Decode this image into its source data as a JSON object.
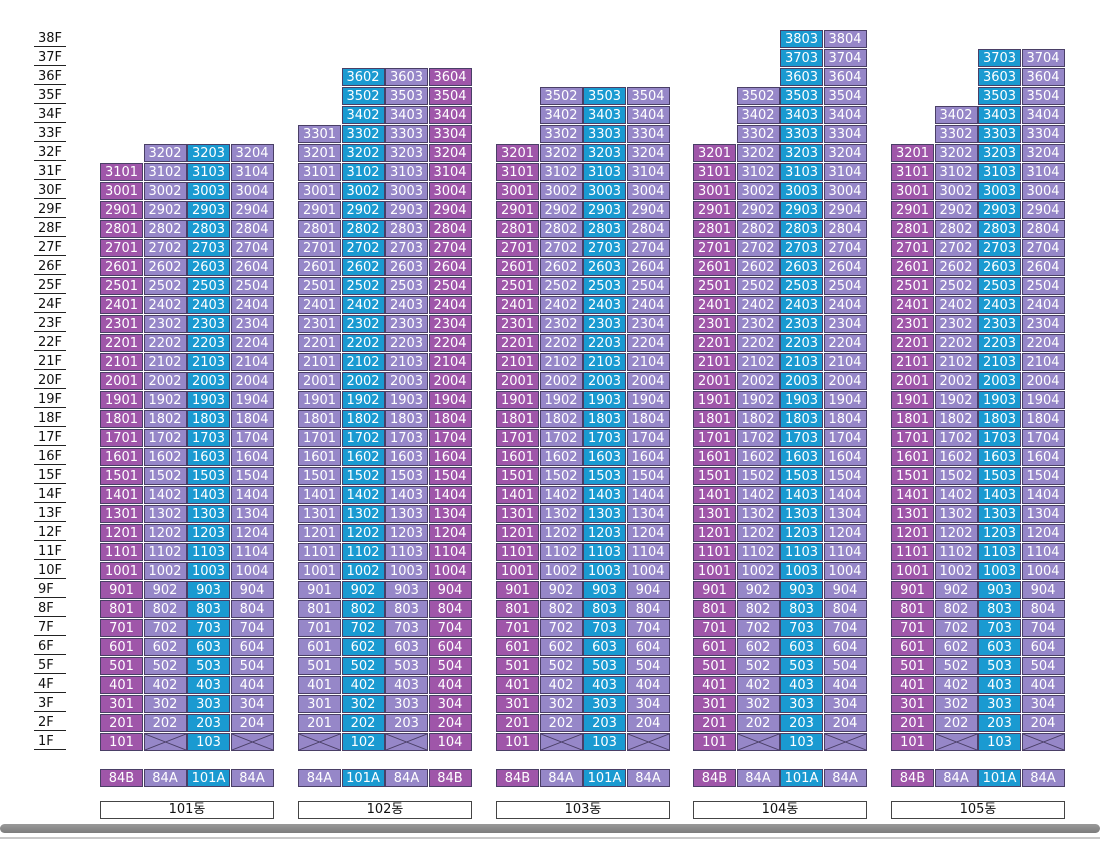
{
  "floors": [
    "38F",
    "37F",
    "36F",
    "35F",
    "34F",
    "33F",
    "32F",
    "31F",
    "30F",
    "29F",
    "28F",
    "27F",
    "26F",
    "25F",
    "24F",
    "23F",
    "22F",
    "21F",
    "20F",
    "19F",
    "18F",
    "17F",
    "16F",
    "15F",
    "14F",
    "13F",
    "12F",
    "11F",
    "10F",
    "9F",
    "8F",
    "7F",
    "6F",
    "5F",
    "4F",
    "3F",
    "2F",
    "1F"
  ],
  "colors": {
    "magenta": "#9f56a9",
    "lavender": "#9687c8",
    "cyan": "#1a9ad1",
    "border": "#4a3f66"
  },
  "buildings": [
    {
      "name": "101동",
      "types": [
        "84B",
        "84A",
        "101A",
        "84A"
      ],
      "line_colors": [
        "magenta",
        "lavender",
        "cyan",
        "lavender"
      ],
      "line_top_floor": [
        31,
        32,
        32,
        32
      ],
      "ground_units": [
        "101",
        null,
        "103",
        null
      ]
    },
    {
      "name": "102동",
      "types": [
        "84A",
        "101A",
        "84A",
        "84B"
      ],
      "line_colors": [
        "lavender",
        "cyan",
        "lavender",
        "magenta"
      ],
      "line_top_floor": [
        33,
        36,
        36,
        36
      ],
      "ground_units": [
        null,
        "102",
        null,
        "104"
      ]
    },
    {
      "name": "103동",
      "types": [
        "84B",
        "84A",
        "101A",
        "84A"
      ],
      "line_colors": [
        "magenta",
        "lavender",
        "cyan",
        "lavender"
      ],
      "line_top_floor": [
        32,
        35,
        35,
        35
      ],
      "ground_units": [
        "101",
        null,
        "103",
        null
      ]
    },
    {
      "name": "104동",
      "types": [
        "84B",
        "84A",
        "101A",
        "84A"
      ],
      "line_colors": [
        "magenta",
        "lavender",
        "cyan",
        "lavender"
      ],
      "line_top_floor": [
        32,
        35,
        38,
        38
      ],
      "ground_units": [
        "101",
        null,
        "103",
        null
      ]
    },
    {
      "name": "105동",
      "types": [
        "84B",
        "84A",
        "101A",
        "84A"
      ],
      "line_colors": [
        "magenta",
        "lavender",
        "cyan",
        "lavender"
      ],
      "line_top_floor": [
        32,
        34,
        37,
        37
      ],
      "ground_units": [
        "101",
        null,
        "103",
        null
      ]
    }
  ]
}
